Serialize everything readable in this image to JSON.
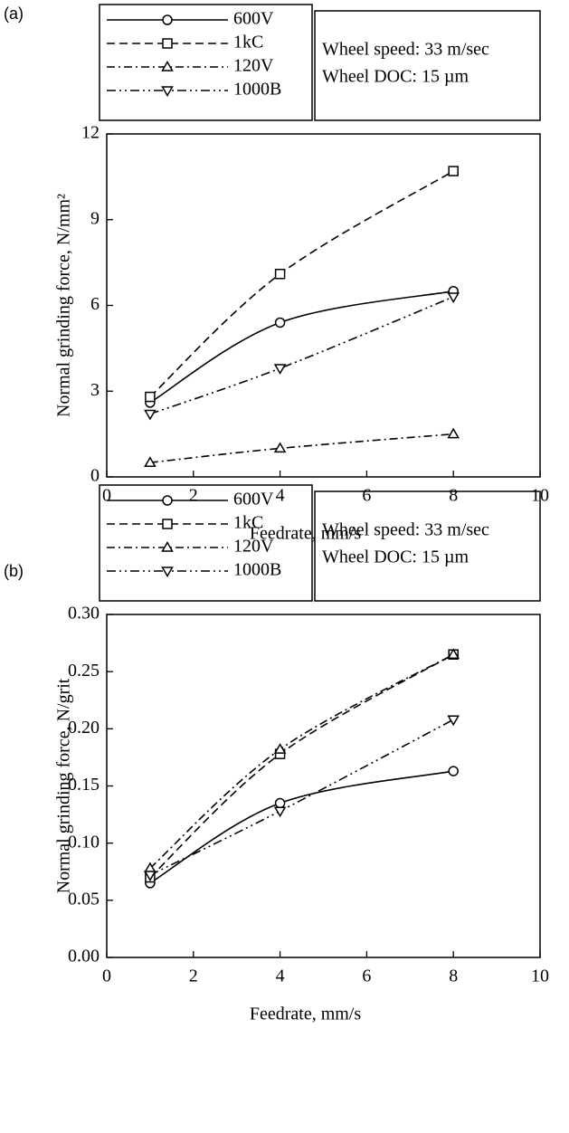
{
  "chart_data": [
    {
      "type": "line",
      "panel_label": "(a)",
      "xlabel": "Feedrate, mm/s",
      "ylabel": "Normal grinding force, N/mm²",
      "annotations": [
        "Wheel speed: 33 m/sec",
        "Wheel DOC: 15 µm"
      ],
      "x": [
        1,
        4,
        8
      ],
      "xlim": [
        0,
        10
      ],
      "xticks": [
        0,
        2,
        4,
        6,
        8,
        10
      ],
      "ylim": [
        0,
        12
      ],
      "yticks": [
        0,
        3,
        6,
        9,
        12
      ],
      "series": [
        {
          "name": "600V",
          "color": "#000000",
          "marker": "circle",
          "linestyle": "solid",
          "values": [
            2.6,
            5.4,
            6.5
          ]
        },
        {
          "name": "1kC",
          "color": "#000000",
          "marker": "square",
          "linestyle": "dashed",
          "values": [
            2.8,
            7.1,
            10.7
          ]
        },
        {
          "name": "120V",
          "color": "#000000",
          "marker": "triangle-up",
          "linestyle": "dashdot",
          "values": [
            0.5,
            1.0,
            1.5
          ]
        },
        {
          "name": "1000B",
          "color": "#000000",
          "marker": "triangle-down",
          "linestyle": "dashdotdot",
          "values": [
            2.2,
            3.8,
            6.3
          ]
        }
      ]
    },
    {
      "type": "line",
      "panel_label": "(b)",
      "xlabel": "Feedrate, mm/s",
      "ylabel": "Normal grinding force, N/grit",
      "annotations": [
        "Wheel speed: 33 m/sec",
        "Wheel DOC: 15 µm"
      ],
      "x": [
        1,
        4,
        8
      ],
      "xlim": [
        0,
        10
      ],
      "xticks": [
        0,
        2,
        4,
        6,
        8,
        10
      ],
      "ylim": [
        0,
        0.3
      ],
      "yticks": [
        {
          "value": 0,
          "label": "0.00"
        },
        0.05,
        {
          "value": 0.1,
          "label": "0.10"
        },
        0.15,
        {
          "value": 0.2,
          "label": "0.20"
        },
        0.25,
        {
          "value": 0.3,
          "label": "0.30"
        }
      ],
      "series": [
        {
          "name": "600V",
          "color": "#000000",
          "marker": "circle",
          "linestyle": "solid",
          "values": [
            0.065,
            0.135,
            0.163
          ]
        },
        {
          "name": "1kC",
          "color": "#000000",
          "marker": "square",
          "linestyle": "dashed",
          "values": [
            0.07,
            0.178,
            0.265
          ]
        },
        {
          "name": "120V",
          "color": "#000000",
          "marker": "triangle-up",
          "linestyle": "dashdot",
          "values": [
            0.078,
            0.182,
            0.265
          ]
        },
        {
          "name": "1000B",
          "color": "#000000",
          "marker": "triangle-down",
          "linestyle": "dashdotdot",
          "values": [
            0.072,
            0.128,
            0.208
          ]
        }
      ]
    }
  ]
}
